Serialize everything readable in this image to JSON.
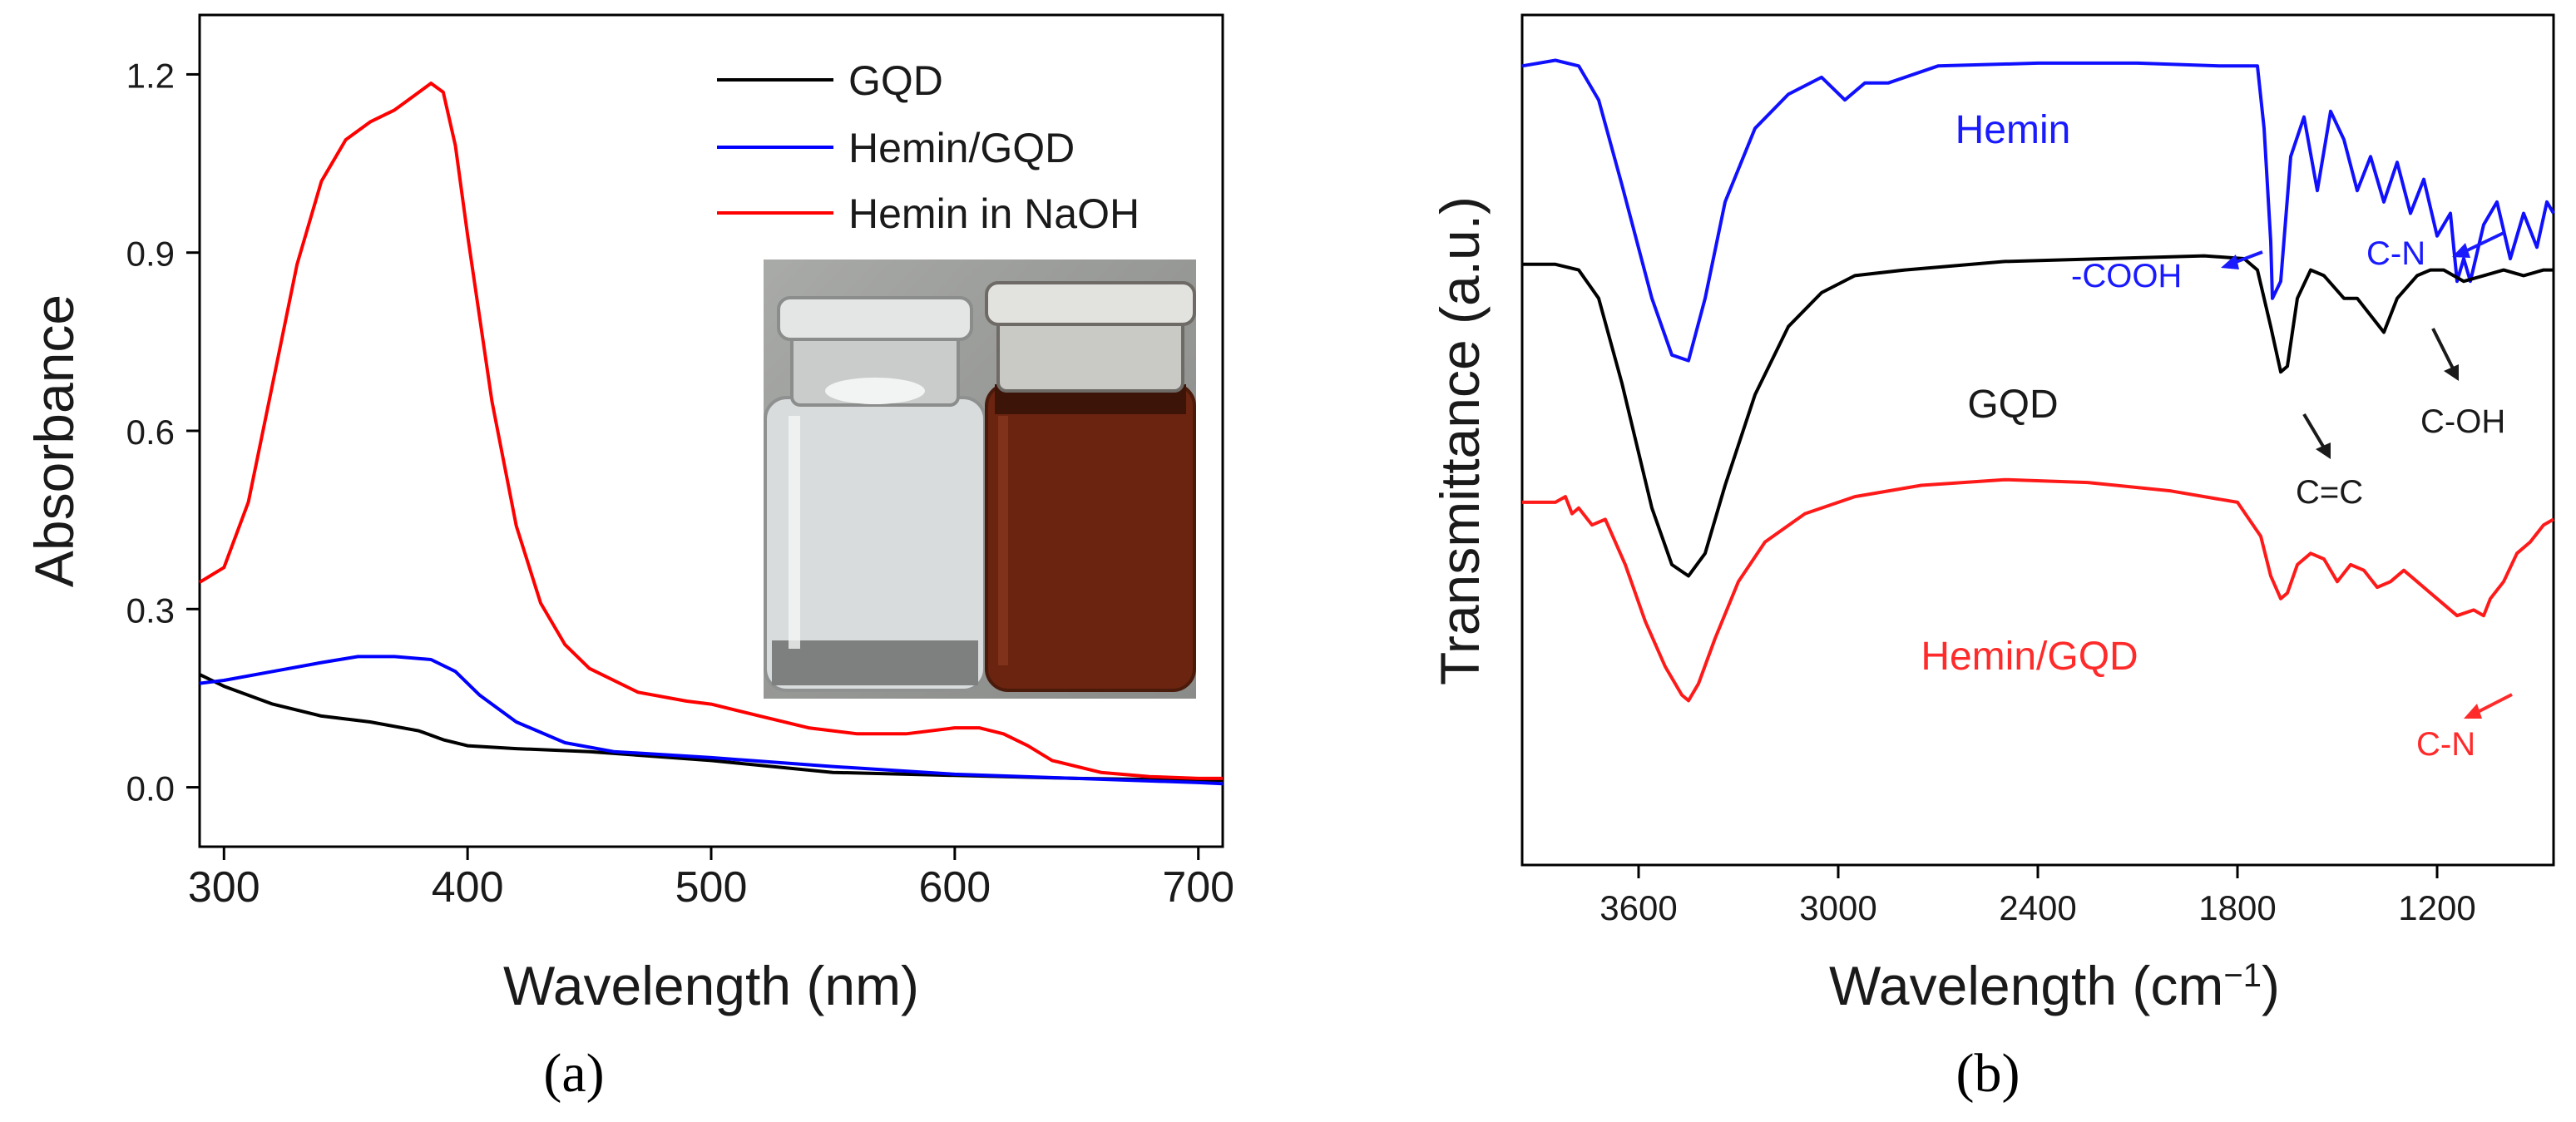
{
  "chart_data": [
    {
      "panel_label": "a",
      "type": "line",
      "title": "",
      "xlabel": "Wavelength (nm)",
      "ylabel": "Absorbance",
      "xlim": [
        290,
        710
      ],
      "ylim": [
        -0.1,
        1.3
      ],
      "xticks": [
        300,
        400,
        500,
        600,
        700
      ],
      "yticks": [
        0.0,
        0.3,
        0.6,
        0.9,
        1.2
      ],
      "ytick_labels": [
        "0.0",
        "0.3",
        "0.6",
        "0.9",
        "1.2"
      ],
      "legend_position": "top-right",
      "series": [
        {
          "name": "GQD",
          "color": "#000000",
          "x": [
            290,
            300,
            320,
            340,
            360,
            380,
            390,
            400,
            420,
            450,
            500,
            550,
            600,
            650,
            700,
            710
          ],
          "y": [
            0.19,
            0.17,
            0.14,
            0.12,
            0.11,
            0.095,
            0.08,
            0.07,
            0.065,
            0.06,
            0.045,
            0.025,
            0.02,
            0.015,
            0.012,
            0.012
          ]
        },
        {
          "name": "Hemin/GQD",
          "color": "#0000ff",
          "x": [
            290,
            300,
            320,
            340,
            355,
            370,
            385,
            395,
            405,
            420,
            440,
            460,
            500,
            550,
            600,
            650,
            700,
            710
          ],
          "y": [
            0.175,
            0.18,
            0.195,
            0.21,
            0.22,
            0.22,
            0.215,
            0.195,
            0.155,
            0.11,
            0.075,
            0.06,
            0.05,
            0.035,
            0.022,
            0.015,
            0.008,
            0.006
          ]
        },
        {
          "name": "Hemin in NaOH",
          "color": "#ff0000",
          "x": [
            290,
            300,
            310,
            320,
            330,
            340,
            350,
            360,
            370,
            380,
            385,
            390,
            395,
            400,
            410,
            420,
            430,
            440,
            450,
            470,
            490,
            500,
            520,
            540,
            560,
            580,
            600,
            610,
            620,
            630,
            640,
            660,
            680,
            700,
            710
          ],
          "y": [
            0.345,
            0.37,
            0.48,
            0.68,
            0.88,
            1.02,
            1.09,
            1.12,
            1.14,
            1.17,
            1.185,
            1.17,
            1.08,
            0.93,
            0.65,
            0.44,
            0.31,
            0.24,
            0.2,
            0.16,
            0.145,
            0.14,
            0.12,
            0.1,
            0.09,
            0.09,
            0.1,
            0.1,
            0.09,
            0.07,
            0.045,
            0.025,
            0.018,
            0.015,
            0.015
          ]
        }
      ],
      "inset": {
        "description_hidden": true,
        "vials": [
          "clear",
          "brown"
        ]
      },
      "caption": "(a)"
    },
    {
      "panel_label": "b",
      "type": "line",
      "title": "",
      "xlabel": "Wavelength (cm⁻¹)",
      "xlabel_base": "Wavelength (cm",
      "xlabel_sup": "−1",
      "xlabel_close": ")",
      "ylabel": "Transmittance (a.u.)",
      "xlim": [
        3950,
        850
      ],
      "xticks": [
        3600,
        3000,
        2400,
        1800,
        1200
      ],
      "yticks_shown": false,
      "series": [
        {
          "name": "Hemin",
          "color": "#1010ff",
          "label_color": "#1a1aff",
          "x": [
            3950,
            3850,
            3780,
            3720,
            3650,
            3560,
            3500,
            3450,
            3400,
            3340,
            3250,
            3150,
            3050,
            2980,
            2920,
            2850,
            2700,
            2400,
            2100,
            1850,
            1740,
            1720,
            1700,
            1695,
            1670,
            1640,
            1600,
            1560,
            1520,
            1480,
            1440,
            1400,
            1360,
            1320,
            1280,
            1240,
            1200,
            1160,
            1140,
            1120,
            1100,
            1060,
            1020,
            980,
            940,
            900,
            870,
            850
          ],
          "y": [
            0.96,
            0.97,
            0.96,
            0.9,
            0.75,
            0.55,
            0.45,
            0.44,
            0.55,
            0.72,
            0.85,
            0.91,
            0.94,
            0.9,
            0.93,
            0.93,
            0.96,
            0.965,
            0.965,
            0.96,
            0.96,
            0.85,
            0.65,
            0.55,
            0.58,
            0.8,
            0.87,
            0.74,
            0.88,
            0.83,
            0.74,
            0.8,
            0.72,
            0.79,
            0.7,
            0.76,
            0.66,
            0.7,
            0.58,
            0.62,
            0.58,
            0.68,
            0.72,
            0.62,
            0.7,
            0.64,
            0.72,
            0.7
          ]
        },
        {
          "name": "GQD",
          "color": "#000000",
          "label_color": "#1a1a1a",
          "x": [
            3950,
            3850,
            3780,
            3720,
            3650,
            3560,
            3500,
            3450,
            3400,
            3340,
            3250,
            3150,
            3050,
            2950,
            2800,
            2500,
            2200,
            1900,
            1780,
            1740,
            1700,
            1670,
            1650,
            1620,
            1580,
            1540,
            1480,
            1440,
            1400,
            1360,
            1320,
            1260,
            1220,
            1180,
            1120,
            1060,
            1000,
            940,
            880,
            850
          ],
          "y": [
            0.61,
            0.61,
            0.6,
            0.55,
            0.4,
            0.18,
            0.08,
            0.06,
            0.1,
            0.22,
            0.38,
            0.5,
            0.56,
            0.59,
            0.6,
            0.615,
            0.62,
            0.625,
            0.62,
            0.6,
            0.5,
            0.42,
            0.43,
            0.55,
            0.6,
            0.59,
            0.55,
            0.55,
            0.52,
            0.49,
            0.55,
            0.59,
            0.6,
            0.6,
            0.58,
            0.59,
            0.6,
            0.59,
            0.6,
            0.6
          ]
        },
        {
          "name": "Hemin/GQD",
          "color": "#ff1a1a",
          "label_color": "#ff2b2b",
          "x": [
            3950,
            3850,
            3820,
            3800,
            3780,
            3740,
            3700,
            3640,
            3580,
            3520,
            3470,
            3450,
            3420,
            3370,
            3300,
            3220,
            3100,
            2950,
            2750,
            2500,
            2250,
            2000,
            1800,
            1730,
            1700,
            1670,
            1650,
            1620,
            1580,
            1540,
            1500,
            1460,
            1420,
            1380,
            1340,
            1300,
            1260,
            1200,
            1140,
            1090,
            1060,
            1040,
            1000,
            960,
            920,
            880,
            850
          ],
          "y": [
            0.19,
            0.19,
            0.2,
            0.17,
            0.18,
            0.15,
            0.16,
            0.08,
            -0.02,
            -0.1,
            -0.15,
            -0.16,
            -0.13,
            -0.05,
            0.05,
            0.12,
            0.17,
            0.2,
            0.22,
            0.23,
            0.225,
            0.21,
            0.19,
            0.13,
            0.06,
            0.02,
            0.03,
            0.08,
            0.1,
            0.09,
            0.05,
            0.08,
            0.07,
            0.04,
            0.05,
            0.07,
            0.05,
            0.02,
            -0.01,
            0.0,
            -0.01,
            0.02,
            0.05,
            0.1,
            0.12,
            0.15,
            0.16
          ]
        }
      ],
      "annotations": [
        {
          "text": "-COOH",
          "color": "#1a1aff"
        },
        {
          "text": "C-N",
          "color": "#1a1aff"
        },
        {
          "text": "C=C",
          "color": "#1a1a1a"
        },
        {
          "text": "C-OH",
          "color": "#1a1a1a"
        },
        {
          "text": "C-N",
          "color": "#ff2b2b"
        }
      ],
      "caption": "(b)"
    }
  ]
}
